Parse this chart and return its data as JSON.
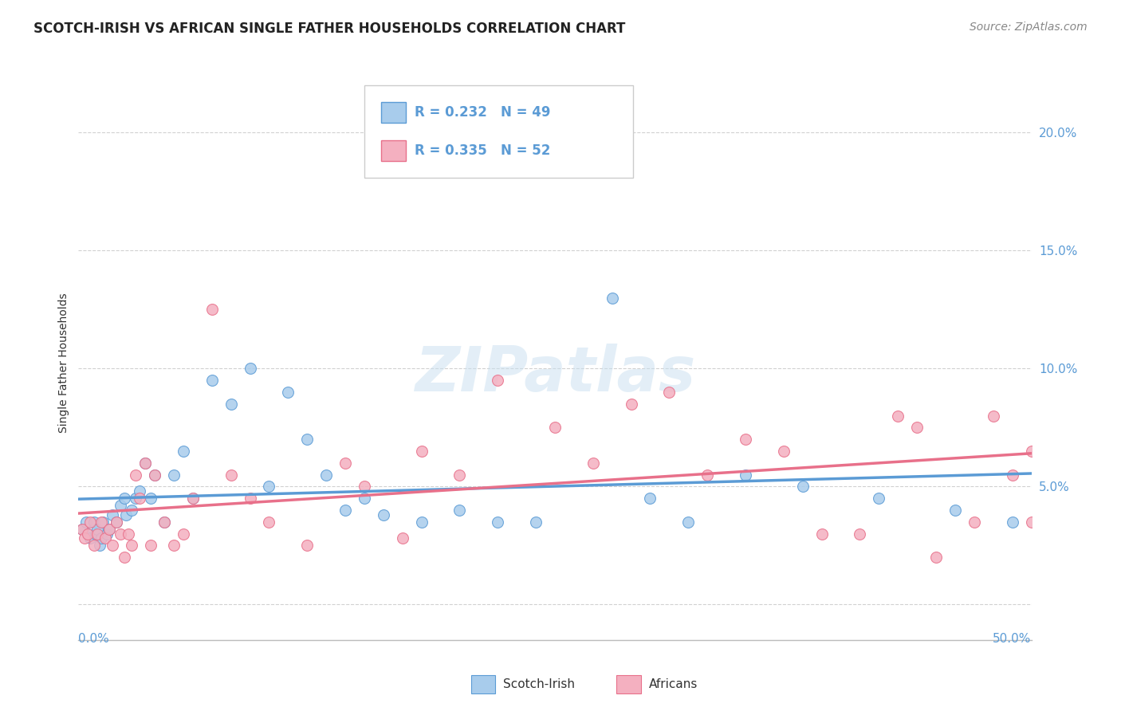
{
  "title": "SCOTCH-IRISH VS AFRICAN SINGLE FATHER HOUSEHOLDS CORRELATION CHART",
  "source": "Source: ZipAtlas.com",
  "ylabel": "Single Father Households",
  "xlim": [
    0.0,
    50.0
  ],
  "ylim": [
    -1.5,
    22.0
  ],
  "yticks": [
    0.0,
    5.0,
    10.0,
    15.0,
    20.0
  ],
  "ytick_labels": [
    "",
    "5.0%",
    "10.0%",
    "15.0%",
    "20.0%"
  ],
  "legend_r1": "R = 0.232",
  "legend_n1": "N = 49",
  "legend_r2": "R = 0.335",
  "legend_n2": "N = 52",
  "color_scotch": "#A8CCEC",
  "color_african": "#F4B0C0",
  "color_scotch_line": "#5B9BD5",
  "color_african_line": "#E8708A",
  "background_color": "#FFFFFF",
  "grid_color": "#CCCCCC",
  "scotch_x": [
    0.2,
    0.4,
    0.5,
    0.6,
    0.8,
    0.9,
    1.0,
    1.1,
    1.2,
    1.3,
    1.5,
    1.6,
    1.8,
    2.0,
    2.2,
    2.4,
    2.5,
    2.8,
    3.0,
    3.2,
    3.5,
    3.8,
    4.0,
    4.5,
    5.0,
    5.5,
    6.0,
    7.0,
    8.0,
    9.0,
    10.0,
    11.0,
    12.0,
    13.0,
    14.0,
    15.0,
    16.0,
    18.0,
    20.0,
    22.0,
    24.0,
    28.0,
    30.0,
    32.0,
    35.0,
    38.0,
    42.0,
    46.0,
    49.0
  ],
  "scotch_y": [
    3.2,
    3.5,
    3.0,
    2.8,
    3.5,
    3.0,
    3.2,
    2.5,
    2.8,
    3.5,
    3.0,
    3.2,
    3.8,
    3.5,
    4.2,
    4.5,
    3.8,
    4.0,
    4.5,
    4.8,
    6.0,
    4.5,
    5.5,
    3.5,
    5.5,
    6.5,
    4.5,
    9.5,
    8.5,
    10.0,
    5.0,
    9.0,
    7.0,
    5.5,
    4.0,
    4.5,
    3.8,
    3.5,
    4.0,
    3.5,
    3.5,
    13.0,
    4.5,
    3.5,
    5.5,
    5.0,
    4.5,
    4.0,
    3.5
  ],
  "african_x": [
    0.2,
    0.3,
    0.5,
    0.6,
    0.8,
    1.0,
    1.2,
    1.4,
    1.6,
    1.8,
    2.0,
    2.2,
    2.4,
    2.6,
    2.8,
    3.0,
    3.2,
    3.5,
    3.8,
    4.0,
    4.5,
    5.0,
    5.5,
    6.0,
    7.0,
    8.0,
    9.0,
    10.0,
    12.0,
    14.0,
    15.0,
    17.0,
    18.0,
    20.0,
    22.0,
    25.0,
    27.0,
    29.0,
    31.0,
    33.0,
    35.0,
    37.0,
    39.0,
    41.0,
    43.0,
    44.0,
    45.0,
    47.0,
    48.0,
    49.0,
    50.0,
    50.0
  ],
  "african_y": [
    3.2,
    2.8,
    3.0,
    3.5,
    2.5,
    3.0,
    3.5,
    2.8,
    3.2,
    2.5,
    3.5,
    3.0,
    2.0,
    3.0,
    2.5,
    5.5,
    4.5,
    6.0,
    2.5,
    5.5,
    3.5,
    2.5,
    3.0,
    4.5,
    12.5,
    5.5,
    4.5,
    3.5,
    2.5,
    6.0,
    5.0,
    2.8,
    6.5,
    5.5,
    9.5,
    7.5,
    6.0,
    8.5,
    9.0,
    5.5,
    7.0,
    6.5,
    3.0,
    3.0,
    8.0,
    7.5,
    2.0,
    3.5,
    8.0,
    5.5,
    6.5,
    3.5
  ]
}
